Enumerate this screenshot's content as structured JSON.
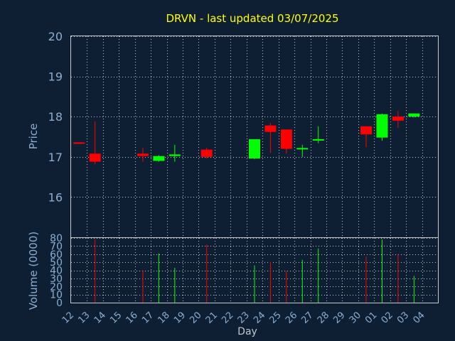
{
  "chart_data": [
    {
      "type": "candlestick",
      "title": "DRVN - last updated 03/07/2025",
      "ylabel": "Price",
      "ylim": [
        15.0,
        20.0
      ],
      "yticks": [
        16,
        17,
        18,
        19,
        20
      ],
      "grid": true,
      "categories": [
        "12",
        "13",
        "14",
        "15",
        "16",
        "17",
        "18",
        "19",
        "20",
        "21",
        "22",
        "23",
        "24",
        "25",
        "26",
        "27",
        "28",
        "29",
        "30",
        "01",
        "02",
        "03",
        "04"
      ],
      "candles": [
        {
          "day": "12",
          "open": 17.36,
          "high": 17.36,
          "low": 17.34,
          "close": 17.34
        },
        {
          "day": "13",
          "open": 17.08,
          "high": 17.88,
          "low": 16.82,
          "close": 16.88
        },
        {
          "day": "16",
          "open": 17.08,
          "high": 17.22,
          "low": 16.88,
          "close": 17.02
        },
        {
          "day": "17",
          "open": 16.9,
          "high": 17.04,
          "low": 16.88,
          "close": 17.02
        },
        {
          "day": "18",
          "open": 17.02,
          "high": 17.3,
          "low": 16.88,
          "close": 17.06
        },
        {
          "day": "20",
          "open": 17.18,
          "high": 17.22,
          "low": 16.96,
          "close": 17.0
        },
        {
          "day": "23",
          "open": 16.96,
          "high": 17.44,
          "low": 16.94,
          "close": 17.44
        },
        {
          "day": "24",
          "open": 17.78,
          "high": 17.84,
          "low": 17.1,
          "close": 17.62
        },
        {
          "day": "25",
          "open": 17.68,
          "high": 17.68,
          "low": 17.08,
          "close": 17.2
        },
        {
          "day": "26",
          "open": 17.22,
          "high": 17.3,
          "low": 17.0,
          "close": 17.22
        },
        {
          "day": "27",
          "open": 17.42,
          "high": 17.76,
          "low": 17.34,
          "close": 17.44
        },
        {
          "day": "30",
          "open": 17.76,
          "high": 17.76,
          "low": 17.24,
          "close": 17.56
        },
        {
          "day": "01",
          "open": 17.48,
          "high": 18.08,
          "low": 17.4,
          "close": 18.06
        },
        {
          "day": "02",
          "open": 18.0,
          "high": 18.14,
          "low": 17.72,
          "close": 17.9
        },
        {
          "day": "03",
          "open": 18.0,
          "high": 18.08,
          "low": 17.98,
          "close": 18.08
        }
      ]
    },
    {
      "type": "bar",
      "ylabel": "Volume (0000)",
      "xlabel": "Day",
      "ylim": [
        0,
        80
      ],
      "yticks": [
        0,
        10,
        20,
        30,
        40,
        50,
        60,
        70,
        80
      ],
      "grid": true,
      "bars": [
        {
          "day": "13",
          "value": 78,
          "direction": "down"
        },
        {
          "day": "16",
          "value": 40,
          "direction": "down"
        },
        {
          "day": "17",
          "value": 61,
          "direction": "up"
        },
        {
          "day": "18",
          "value": 43,
          "direction": "up"
        },
        {
          "day": "20",
          "value": 72,
          "direction": "down"
        },
        {
          "day": "23",
          "value": 46,
          "direction": "up"
        },
        {
          "day": "24",
          "value": 50,
          "direction": "down"
        },
        {
          "day": "25",
          "value": 39,
          "direction": "down"
        },
        {
          "day": "26",
          "value": 53,
          "direction": "up"
        },
        {
          "day": "27",
          "value": 67,
          "direction": "up"
        },
        {
          "day": "30",
          "value": 57,
          "direction": "down"
        },
        {
          "day": "01",
          "value": 78,
          "direction": "up"
        },
        {
          "day": "02",
          "value": 60,
          "direction": "down"
        },
        {
          "day": "03",
          "value": 33,
          "direction": "up"
        }
      ]
    }
  ],
  "colors": {
    "background": "#0f1f33",
    "title": "#ffff00",
    "axis_text": "#8aaed2",
    "frame": "#c8c8c8",
    "grid": "#c8c8c8",
    "up": "#00ff00",
    "down": "#ff0000"
  }
}
